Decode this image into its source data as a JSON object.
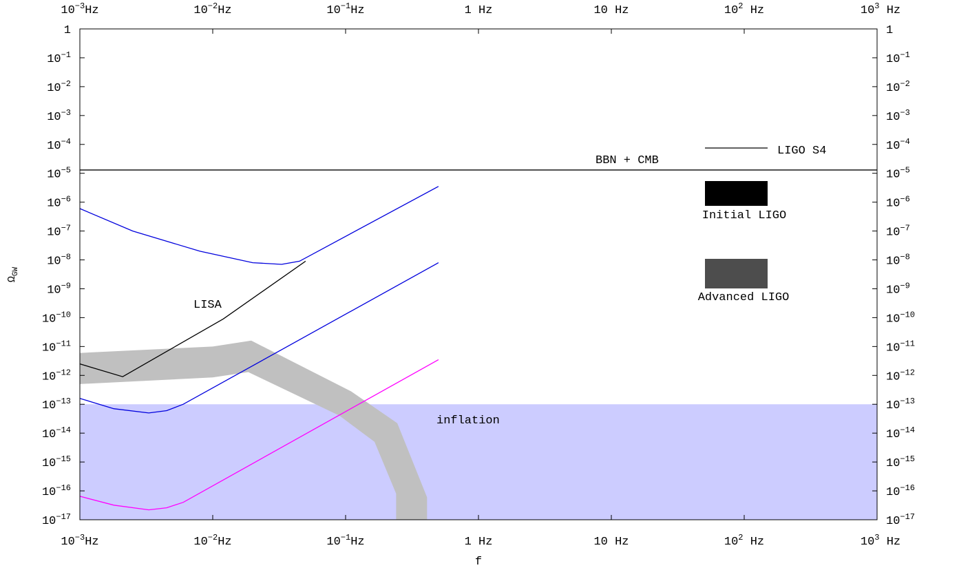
{
  "chart_data": {
    "type": "line",
    "xlabel": "f",
    "ylabel": "Ω_GW",
    "x_scale": "log",
    "y_scale": "log",
    "xlim": [
      0.001,
      1000
    ],
    "ylim": [
      1e-17,
      1
    ],
    "grid": false,
    "x_ticks": [
      {
        "value": 0.001,
        "base": "10",
        "exp": "−3",
        "unit": "Hz"
      },
      {
        "value": 0.01,
        "base": "10",
        "exp": "−2",
        "unit": "Hz"
      },
      {
        "value": 0.1,
        "base": "10",
        "exp": "−1",
        "unit": "Hz"
      },
      {
        "value": 1,
        "base": "1 Hz",
        "exp": "",
        "unit": ""
      },
      {
        "value": 10,
        "base": "10 Hz",
        "exp": "",
        "unit": ""
      },
      {
        "value": 100,
        "base": "10",
        "exp": "2",
        "unit": " Hz"
      },
      {
        "value": 1000,
        "base": "10",
        "exp": "3",
        "unit": " Hz"
      }
    ],
    "y_ticks": [
      {
        "value": 1,
        "base": "1",
        "exp": ""
      },
      {
        "value": 0.1,
        "base": "10",
        "exp": "−1"
      },
      {
        "value": 0.01,
        "base": "10",
        "exp": "−2"
      },
      {
        "value": 0.001,
        "base": "10",
        "exp": "−3"
      },
      {
        "value": 0.0001,
        "base": "10",
        "exp": "−4"
      },
      {
        "value": 1e-05,
        "base": "10",
        "exp": "−5"
      },
      {
        "value": 1e-06,
        "base": "10",
        "exp": "−6"
      },
      {
        "value": 1e-07,
        "base": "10",
        "exp": "−7"
      },
      {
        "value": 1e-08,
        "base": "10",
        "exp": "−8"
      },
      {
        "value": 1e-09,
        "base": "10",
        "exp": "−9"
      },
      {
        "value": 1e-10,
        "base": "10",
        "exp": "−10"
      },
      {
        "value": 1e-11,
        "base": "10",
        "exp": "−11"
      },
      {
        "value": 1e-12,
        "base": "10",
        "exp": "−12"
      },
      {
        "value": 1e-13,
        "base": "10",
        "exp": "−13"
      },
      {
        "value": 1e-14,
        "base": "10",
        "exp": "−14"
      },
      {
        "value": 1e-15,
        "base": "10",
        "exp": "−15"
      },
      {
        "value": 1e-16,
        "base": "10",
        "exp": "−16"
      },
      {
        "value": 1e-17,
        "base": "10",
        "exp": "−17"
      }
    ],
    "regions": {
      "inflation": {
        "label": "inflation",
        "y_max": 1e-13,
        "color": "#ccccff"
      },
      "bbn_cmb": {
        "label": "BBN + CMB",
        "y": 1.3e-05,
        "color": "#000000"
      }
    },
    "curves": [
      {
        "color": "#0000dd",
        "points": [
          [
            0.001,
            6e-07
          ],
          [
            0.0025,
            1e-07
          ],
          [
            0.008,
            2e-08
          ],
          [
            0.02,
            8e-09
          ],
          [
            0.033,
            7e-09
          ],
          [
            0.045,
            9e-09
          ],
          [
            0.5,
            3.5e-06
          ]
        ]
      },
      {
        "color": "#0000dd",
        "points": [
          [
            0.001,
            1.6e-13
          ],
          [
            0.0018,
            7e-14
          ],
          [
            0.0033,
            5e-14
          ],
          [
            0.0045,
            6e-14
          ],
          [
            0.006,
            1e-13
          ],
          [
            0.5,
            8e-09
          ]
        ]
      },
      {
        "color": "#ff00ff",
        "points": [
          [
            0.001,
            6.5e-17
          ],
          [
            0.0018,
            3.2e-17
          ],
          [
            0.0033,
            2.2e-17
          ],
          [
            0.0045,
            2.6e-17
          ],
          [
            0.006,
            4e-17
          ],
          [
            0.5,
            3.5e-12
          ]
        ]
      },
      {
        "color": "#000000",
        "points": [
          [
            0.001,
            2.5e-12
          ],
          [
            0.0021,
            9e-13
          ],
          [
            0.012,
            9e-11
          ],
          [
            0.05,
            9e-09
          ]
        ]
      }
    ],
    "lisa_label": "LISA",
    "gray_band": {
      "color": "#c0c0c0",
      "upper": [
        [
          0.001,
          6e-12
        ],
        [
          0.01,
          1e-11
        ],
        [
          0.0195,
          1.6e-11
        ],
        [
          0.11,
          2.8e-13
        ],
        [
          0.245,
          2.2e-14
        ],
        [
          0.41,
          6e-17
        ],
        [
          0.41,
          1e-17
        ]
      ],
      "lower": [
        [
          0.001,
          5e-13
        ],
        [
          0.01,
          8.5e-13
        ],
        [
          0.0185,
          1.3e-12
        ],
        [
          0.09,
          4e-14
        ],
        [
          0.165,
          5e-15
        ],
        [
          0.24,
          8e-17
        ],
        [
          0.24,
          1e-17
        ]
      ]
    },
    "legend": {
      "ligo_s4": {
        "label": "LIGO S4",
        "color": "#000000"
      },
      "initial_ligo": {
        "label": "Initial LIGO",
        "color": "#000000"
      },
      "advanced_ligo": {
        "label": "Advanced LIGO",
        "color": "#4d4d4d"
      }
    }
  }
}
